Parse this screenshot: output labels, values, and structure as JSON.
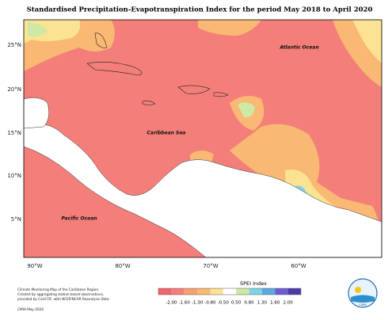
{
  "title": "Standardised Precipitation-Evapotranspiration Index for the period May 2018 to April 2020",
  "lat_labels": [
    "25°N",
    "20°N",
    "15°N",
    "10°N",
    "5°N"
  ],
  "lon_labels": [
    "90°W",
    "80°W",
    "70°W",
    "60°W"
  ],
  "places": {
    "atlantic": "Atlantic Ocean",
    "caribbean": "Caribbean Sea",
    "pacific": "Pacific Ocean"
  },
  "legend": {
    "title": "SPEI Index",
    "ticks": [
      "-2.00",
      "-1.60",
      "-1.30",
      "-0.80",
      "-0.50",
      "0.50",
      "0.80",
      "1.30",
      "1.60",
      "2.00"
    ]
  },
  "footnote": [
    "Climate Monitoring Map of the Caribbean Region.",
    "Created by aggregating station based observations,",
    "provided by CariCOF, with NCEP/NCAR Reanalysis Data."
  ],
  "credit": "CIMH May-2020",
  "logo": "CIMH"
}
